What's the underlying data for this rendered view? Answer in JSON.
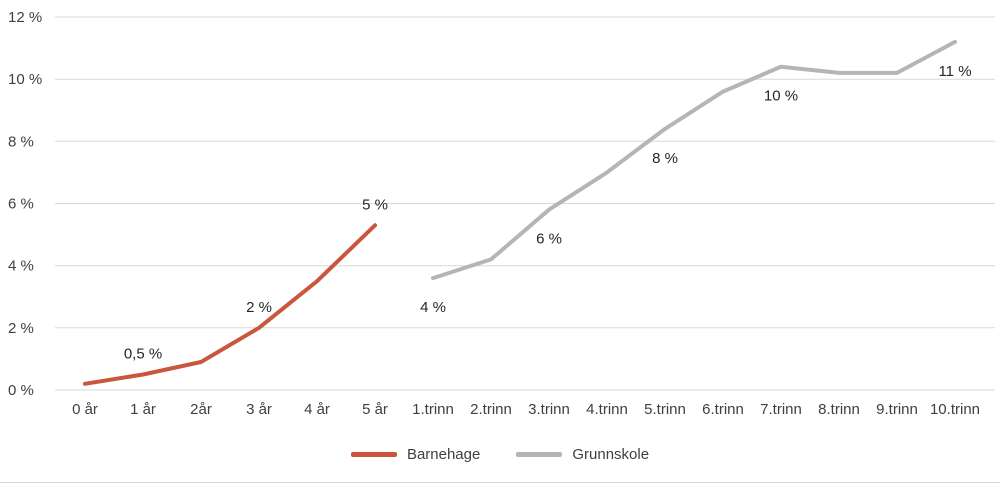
{
  "chart_data": {
    "type": "line",
    "title": "",
    "xlabel": "",
    "ylabel": "",
    "grid": true,
    "legend_position": "bottom",
    "ylim": [
      0,
      12
    ],
    "yticks": [
      {
        "value": 0,
        "label": "0 %"
      },
      {
        "value": 2,
        "label": "2 %"
      },
      {
        "value": 4,
        "label": "4 %"
      },
      {
        "value": 6,
        "label": "6 %"
      },
      {
        "value": 8,
        "label": "8 %"
      },
      {
        "value": 10,
        "label": "10 %"
      },
      {
        "value": 12,
        "label": "12 %"
      }
    ],
    "categories": [
      "0 år",
      "1 år",
      "2år",
      "3 år",
      "4 år",
      "5 år",
      "1.trinn",
      "2.trinn",
      "3.trinn",
      "4.trinn",
      "5.trinn",
      "6.trinn",
      "7.trinn",
      "8.trinn",
      "9.trinn",
      "10.trinn"
    ],
    "series": [
      {
        "name": "Barnehage",
        "color": "#c8573e",
        "start_index": 0,
        "values": [
          0.2,
          0.5,
          0.9,
          2.0,
          3.5,
          5.3
        ],
        "labels": [
          {
            "index": 1,
            "text": "0,5 %",
            "placement": "above"
          },
          {
            "index": 3,
            "text": "2 %",
            "placement": "above"
          },
          {
            "index": 5,
            "text": "5 %",
            "placement": "above"
          }
        ]
      },
      {
        "name": "Grunnskole",
        "color": "#b5b5b5",
        "start_index": 6,
        "values": [
          3.6,
          4.2,
          5.8,
          7.0,
          8.4,
          9.6,
          10.4,
          10.2,
          10.2,
          11.2
        ],
        "labels": [
          {
            "index": 0,
            "text": "4 %",
            "placement": "below"
          },
          {
            "index": 2,
            "text": "6 %",
            "placement": "below"
          },
          {
            "index": 4,
            "text": "8 %",
            "placement": "below"
          },
          {
            "index": 6,
            "text": "10 %",
            "placement": "below"
          },
          {
            "index": 9,
            "text": "11 %",
            "placement": "below"
          }
        ]
      }
    ]
  },
  "colors": {
    "grid": "#d9d9d9",
    "axis_text": "#404040",
    "label_text": "#262626"
  }
}
